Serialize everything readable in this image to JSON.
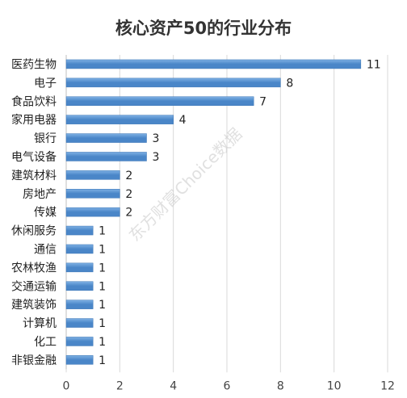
{
  "chart_data": {
    "type": "bar",
    "orientation": "horizontal",
    "title": "核心资产50的行业分布",
    "categories": [
      "医药生物",
      "电子",
      "食品饮料",
      "家用电器",
      "银行",
      "电气设备",
      "建筑材料",
      "房地产",
      "传媒",
      "休闲服务",
      "通信",
      "农林牧渔",
      "交通运输",
      "建筑装饰",
      "计算机",
      "化工",
      "非银金融"
    ],
    "values": [
      11,
      8,
      7,
      4,
      3,
      3,
      2,
      2,
      2,
      1,
      1,
      1,
      1,
      1,
      1,
      1,
      1
    ],
    "xlabel": "",
    "ylabel": "",
    "xlim": [
      0,
      12
    ],
    "xticks": [
      0,
      2,
      4,
      6,
      8,
      10,
      12
    ],
    "grid": "vertical",
    "legend": "none",
    "bar_color": "#4a86c8",
    "bar_color_light": "#7eb0e4",
    "watermark": "东方财富Choice数据"
  }
}
